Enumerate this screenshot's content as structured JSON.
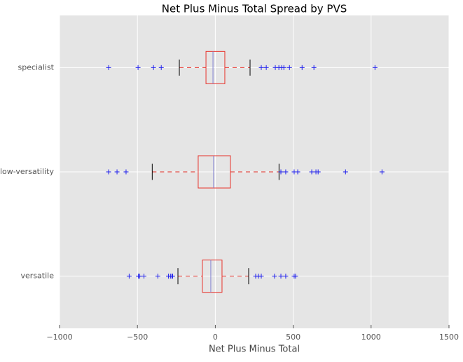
{
  "chart_data": {
    "type": "box",
    "orientation": "horizontal",
    "title": "Net Plus Minus Total Spread by PVS",
    "xlabel": "Net Plus Minus Total",
    "categories": [
      "versatile",
      "low-versatility",
      "specialist"
    ],
    "boxes": [
      {
        "whisker_low": -240,
        "q1": -83,
        "median": -29,
        "q3": 43,
        "whisker_high": 214,
        "fliers": [
          -553,
          -494,
          -485,
          -458,
          -369,
          -301,
          -288,
          -279,
          -274,
          259,
          277,
          295,
          380,
          421,
          452,
          506,
          515
        ]
      },
      {
        "whisker_low": -405,
        "q1": -110,
        "median": -11,
        "q3": 97,
        "whisker_high": 409,
        "fliers": [
          -685,
          -631,
          -573,
          421,
          452,
          506,
          529,
          619,
          646,
          660,
          836,
          1070
        ]
      },
      {
        "whisker_low": -231,
        "q1": -60,
        "median": -15,
        "q3": 61,
        "whisker_high": 223,
        "fliers": [
          -685,
          -496,
          -397,
          -347,
          295,
          327,
          385,
          408,
          426,
          440,
          476,
          557,
          633,
          1025
        ]
      }
    ],
    "box_color": "#e8322a",
    "median_color": "#7f7fd0",
    "whisker_color": "#e8322a",
    "cap_color": "#000000",
    "flier_color": "#2222ee",
    "xlim": [
      -1000,
      1500
    ],
    "xticks": [
      {
        "value": -1000,
        "label": "−1000"
      },
      {
        "value": -500,
        "label": "−500"
      },
      0,
      500,
      1000,
      1500
    ],
    "grid": true
  }
}
